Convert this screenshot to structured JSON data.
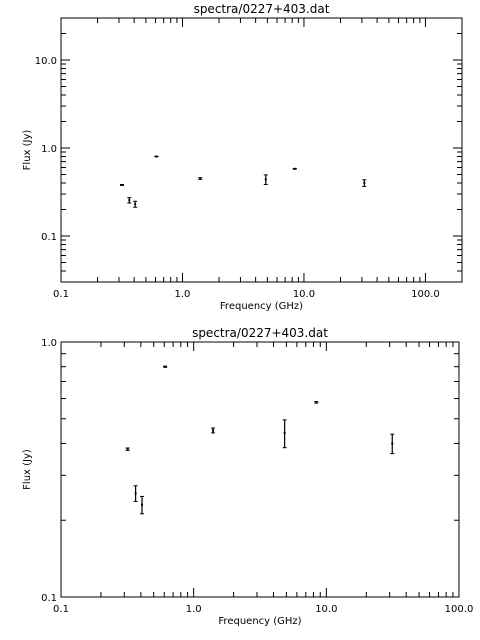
{
  "chart_data": [
    {
      "type": "scatter",
      "title": "spectra/0227+403.dat",
      "xlabel": "Frequency (GHz)",
      "ylabel": "Flux (Jy)",
      "x_scale": "log",
      "y_scale": "log",
      "xlim": [
        0.1,
        200.0
      ],
      "ylim": [
        0.03,
        30.0
      ],
      "x_ticks": [
        0.1,
        1.0,
        10.0,
        100.0
      ],
      "x_tick_labels": [
        "0.1",
        "1.0",
        "10.0",
        "100.0"
      ],
      "y_ticks": [
        0.1,
        1.0,
        10.0
      ],
      "y_tick_labels": [
        "0.1",
        "1.0",
        "10.0"
      ],
      "grid": false,
      "legend": "none",
      "points": [
        {
          "x": 0.318,
          "y": 0.38,
          "err": 0.004
        },
        {
          "x": 0.365,
          "y": 0.255,
          "err": 0.018
        },
        {
          "x": 0.408,
          "y": 0.23,
          "err": 0.018
        },
        {
          "x": 0.61,
          "y": 0.8,
          "err": 0.004
        },
        {
          "x": 1.4,
          "y": 0.45,
          "err": 0.01
        },
        {
          "x": 4.85,
          "y": 0.44,
          "err": 0.055
        },
        {
          "x": 8.4,
          "y": 0.58,
          "err": 0.004
        },
        {
          "x": 31.4,
          "y": 0.4,
          "err": 0.035
        }
      ]
    },
    {
      "type": "scatter",
      "title": "spectra/0227+403.dat",
      "xlabel": "Frequency (GHz)",
      "ylabel": "Flux (Jy)",
      "x_scale": "log",
      "y_scale": "log",
      "xlim": [
        0.1,
        100.0
      ],
      "ylim": [
        0.1,
        1.0
      ],
      "x_ticks": [
        0.1,
        1.0,
        10.0,
        100.0
      ],
      "x_tick_labels": [
        "0.1",
        "1.0",
        "10.0",
        "100.0"
      ],
      "y_ticks": [
        0.1,
        1.0
      ],
      "y_tick_labels": [
        "0.1",
        "1.0"
      ],
      "grid": false,
      "legend": "none",
      "points": [
        {
          "x": 0.318,
          "y": 0.38,
          "err": 0.004
        },
        {
          "x": 0.365,
          "y": 0.255,
          "err": 0.018
        },
        {
          "x": 0.408,
          "y": 0.23,
          "err": 0.018
        },
        {
          "x": 0.61,
          "y": 0.8,
          "err": 0.004
        },
        {
          "x": 1.4,
          "y": 0.45,
          "err": 0.01
        },
        {
          "x": 4.85,
          "y": 0.44,
          "err": 0.055
        },
        {
          "x": 8.4,
          "y": 0.58,
          "err": 0.004
        },
        {
          "x": 31.4,
          "y": 0.4,
          "err": 0.035
        }
      ]
    }
  ]
}
